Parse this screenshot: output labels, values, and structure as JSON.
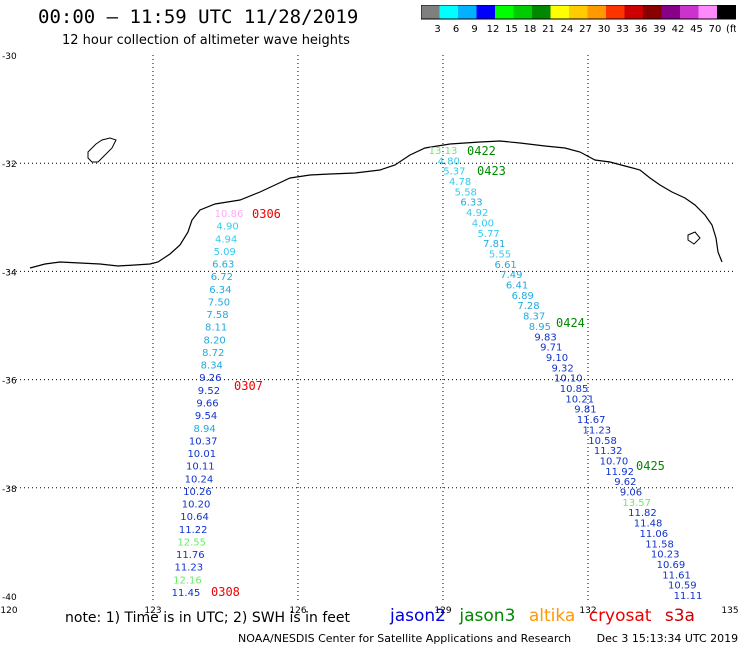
{
  "header": {
    "title": "00:00 – 11:59 UTC 11/28/2019",
    "subtitle": "12 hour collection of altimeter wave heights"
  },
  "colorbar": {
    "colors": [
      "#7f7f7f",
      "#00ffff",
      "#00b2ff",
      "#0000ff",
      "#00ff00",
      "#00cc00",
      "#008800",
      "#ffff00",
      "#ffcc00",
      "#ff9900",
      "#ff3300",
      "#cc0000",
      "#880000",
      "#880088",
      "#cc33cc",
      "#ff88ff",
      "#000000"
    ],
    "ticks": [
      "3",
      "6",
      "9",
      "12",
      "15",
      "18",
      "21",
      "24",
      "27",
      "30",
      "33",
      "36",
      "39",
      "42",
      "45",
      "70",
      "(ft)"
    ]
  },
  "map": {
    "lat_labels": [
      "-30",
      "-32",
      "-34",
      "-36",
      "-38",
      "-40"
    ],
    "lon_labels": [
      "120",
      "123",
      "126",
      "129",
      "132",
      "135"
    ]
  },
  "tracks": [
    {
      "points": [
        {
          "v": "10.86",
          "c": "#ffaaff"
        },
        {
          "v": "4.90",
          "c": "#33ccee"
        },
        {
          "v": "4.94",
          "c": "#33ccee"
        },
        {
          "v": "5.09",
          "c": "#33ccee"
        },
        {
          "v": "6.63",
          "c": "#22aadd"
        },
        {
          "v": "6.72",
          "c": "#22aadd"
        },
        {
          "v": "6.34",
          "c": "#22aadd"
        },
        {
          "v": "7.50",
          "c": "#22aadd"
        },
        {
          "v": "7.58",
          "c": "#22aadd"
        },
        {
          "v": "8.11",
          "c": "#22aadd"
        },
        {
          "v": "8.20",
          "c": "#22aadd"
        },
        {
          "v": "8.72",
          "c": "#22aadd"
        },
        {
          "v": "8.34",
          "c": "#22aadd"
        },
        {
          "v": "9.26",
          "c": "#1133cc"
        },
        {
          "v": "9.52",
          "c": "#1133cc"
        },
        {
          "v": "9.66",
          "c": "#1133cc"
        },
        {
          "v": "9.54",
          "c": "#1133cc"
        },
        {
          "v": "8.94",
          "c": "#22aadd"
        },
        {
          "v": "10.37",
          "c": "#1133cc"
        },
        {
          "v": "10.01",
          "c": "#1133cc"
        },
        {
          "v": "10.11",
          "c": "#1133cc"
        },
        {
          "v": "10.24",
          "c": "#1133cc"
        },
        {
          "v": "10.26",
          "c": "#1133cc"
        },
        {
          "v": "10.20",
          "c": "#1133cc"
        },
        {
          "v": "10.64",
          "c": "#1133cc"
        },
        {
          "v": "11.22",
          "c": "#1133cc"
        },
        {
          "v": "12.55",
          "c": "#66ee66"
        },
        {
          "v": "11.76",
          "c": "#1133cc"
        },
        {
          "v": "11.23",
          "c": "#1133cc"
        },
        {
          "v": "12.16",
          "c": "#66ee66"
        },
        {
          "v": "11.45",
          "c": "#1133cc"
        }
      ]
    },
    {
      "points": [
        {
          "v": "13.13",
          "c": "#66ee66"
        },
        {
          "v": "4.80",
          "c": "#33ccee"
        },
        {
          "v": "5.37",
          "c": "#33ccee"
        },
        {
          "v": "4.78",
          "c": "#33ccee"
        },
        {
          "v": "5.58",
          "c": "#33ccee"
        },
        {
          "v": "6.33",
          "c": "#22aadd"
        },
        {
          "v": "4.92",
          "c": "#33ccee"
        },
        {
          "v": "4.00",
          "c": "#33ccee"
        },
        {
          "v": "5.77",
          "c": "#33ccee"
        },
        {
          "v": "7.81",
          "c": "#22aadd"
        },
        {
          "v": "5.55",
          "c": "#33ccee"
        },
        {
          "v": "6.61",
          "c": "#22aadd"
        },
        {
          "v": "7.49",
          "c": "#22aadd"
        },
        {
          "v": "6.41",
          "c": "#22aadd"
        },
        {
          "v": "6.89",
          "c": "#22aadd"
        },
        {
          "v": "7.28",
          "c": "#22aadd"
        },
        {
          "v": "8.37",
          "c": "#22aadd"
        },
        {
          "v": "8.95",
          "c": "#22aadd"
        },
        {
          "v": "9.83",
          "c": "#1133cc"
        },
        {
          "v": "9.71",
          "c": "#1133cc"
        },
        {
          "v": "9.10",
          "c": "#1133cc"
        },
        {
          "v": "9.32",
          "c": "#1133cc"
        },
        {
          "v": "10.10",
          "c": "#1133cc"
        },
        {
          "v": "10.85",
          "c": "#1133cc"
        },
        {
          "v": "10.21",
          "c": "#1133cc"
        },
        {
          "v": "9.81",
          "c": "#1133cc"
        },
        {
          "v": "11.67",
          "c": "#1133cc"
        },
        {
          "v": "11.23",
          "c": "#1133cc"
        },
        {
          "v": "10.58",
          "c": "#1133cc"
        },
        {
          "v": "11.32",
          "c": "#1133cc"
        },
        {
          "v": "10.70",
          "c": "#1133cc"
        },
        {
          "v": "11.92",
          "c": "#1133cc"
        },
        {
          "v": "9.62",
          "c": "#1133cc"
        },
        {
          "v": "9.06",
          "c": "#1133cc"
        },
        {
          "v": "13.57",
          "c": "#66ee66"
        },
        {
          "v": "11.82",
          "c": "#1133cc"
        },
        {
          "v": "11.48",
          "c": "#1133cc"
        },
        {
          "v": "11.06",
          "c": "#1133cc"
        },
        {
          "v": "11.58",
          "c": "#1133cc"
        },
        {
          "v": "10.23",
          "c": "#1133cc"
        },
        {
          "v": "10.69",
          "c": "#1133cc"
        },
        {
          "v": "11.61",
          "c": "#1133cc"
        },
        {
          "v": "10.59",
          "c": "#1133cc"
        },
        {
          "v": "11.11",
          "c": "#1133cc"
        }
      ]
    }
  ],
  "time_labels": [
    {
      "text": "0306",
      "color": "#ee0000"
    },
    {
      "text": "0307",
      "color": "#ee0000"
    },
    {
      "text": "0308",
      "color": "#ee0000"
    },
    {
      "text": "0422",
      "color": "#008800"
    },
    {
      "text": "0423",
      "color": "#008800"
    },
    {
      "text": "0424",
      "color": "#008800"
    },
    {
      "text": "0425",
      "color": "#008800"
    }
  ],
  "note": "note: 1) Time is in UTC; 2) SWH is in feet",
  "legend": [
    {
      "name": "jason2",
      "color": "#0000dd"
    },
    {
      "name": "jason3",
      "color": "#008800"
    },
    {
      "name": "altika",
      "color": "#ff9900"
    },
    {
      "name": "cryosat",
      "color": "#ee0000"
    },
    {
      "name": "s3a",
      "color": "#cc0000"
    }
  ],
  "footer": {
    "credit": "NOAA/NESDIS Center for Satellite Applications and Research",
    "timestamp": "Dec  3 15:13:34 UTC 2019"
  }
}
